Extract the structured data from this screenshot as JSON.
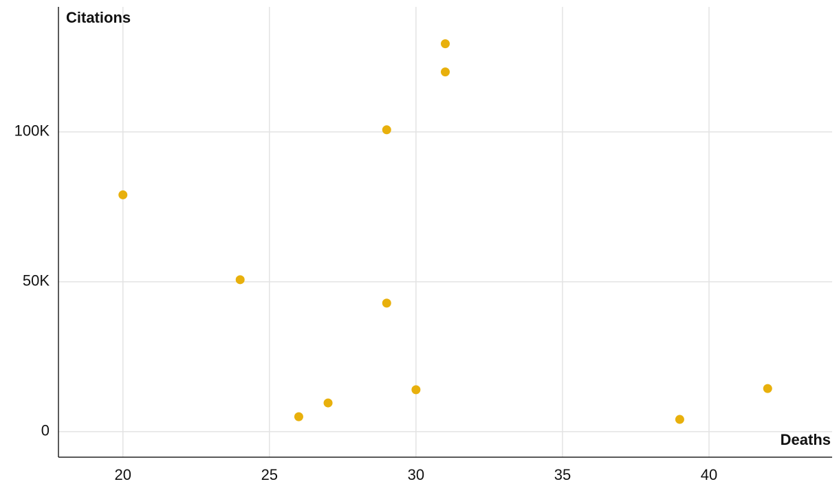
{
  "chart_data": {
    "type": "scatter",
    "x_label": "Deaths",
    "y_label": "Citations",
    "x": [
      20,
      24,
      26,
      27,
      29,
      29,
      30,
      31,
      31,
      39,
      42
    ],
    "values": [
      79000,
      50700,
      5000,
      9600,
      42900,
      100700,
      14000,
      120000,
      129400,
      4100,
      14400
    ],
    "color": "#e8b00c",
    "xlim": [
      17.8,
      44.2
    ],
    "xticks": [
      20,
      25,
      30,
      35,
      40
    ],
    "ylim": [
      -8500,
      141700
    ],
    "yticks": [
      0,
      {
        "value": 50000,
        "label": "50K"
      },
      {
        "value": 100000,
        "label": "100K"
      }
    ],
    "grid": true
  }
}
